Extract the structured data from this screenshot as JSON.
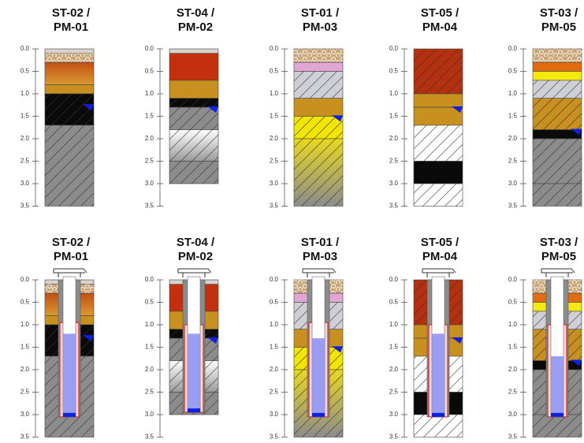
{
  "depth_axis": {
    "lim": [
      0,
      3.5
    ],
    "ticks": [
      {
        "value": 0,
        "label": "0.0"
      },
      {
        "value": 0.5,
        "label": "0.5"
      },
      {
        "value": 1,
        "label": "1.0"
      },
      {
        "value": 1.5,
        "label": "1.5"
      },
      {
        "value": 2,
        "label": "2.0"
      },
      {
        "value": 2.5,
        "label": "2.5"
      },
      {
        "value": 3,
        "label": "3.0"
      },
      {
        "value": 3.5,
        "label": "3.5"
      }
    ]
  },
  "logs": [
    {
      "title": [
        "ST-02 /",
        "PM-01"
      ],
      "water_level": 1.3,
      "layers": [
        {
          "top": 0,
          "bottom": 0.1,
          "color": "#d8d4cc",
          "pattern": "plain"
        },
        {
          "top": 0.1,
          "bottom": 0.3,
          "color": "#c9a577",
          "pattern": "gravel"
        },
        {
          "top": 0.3,
          "bottom": 0.8,
          "color": "#c24f14",
          "color2": "#d99a33",
          "pattern": "plain"
        },
        {
          "top": 0.8,
          "bottom": 1.0,
          "color": "#c8901e",
          "pattern": "plain"
        },
        {
          "top": 1.0,
          "bottom": 1.7,
          "color": "#0a0a0a",
          "pattern": "hatch"
        },
        {
          "top": 1.7,
          "bottom": 3.5,
          "color": "#8c8c8c",
          "pattern": "hatch"
        }
      ],
      "well": {
        "screen_top": 0.95,
        "bottom": 3.05,
        "water": 1.2
      }
    },
    {
      "title": [
        "ST-04 /",
        "PM-02"
      ],
      "water_level": 1.35,
      "layers": [
        {
          "top": 0,
          "bottom": 0.1,
          "color": "#d8d4cc",
          "pattern": "plain"
        },
        {
          "top": 0.1,
          "bottom": 0.7,
          "color": "#c4300e",
          "pattern": "plain"
        },
        {
          "top": 0.7,
          "bottom": 1.1,
          "color": "#c8901e",
          "pattern": "plain"
        },
        {
          "top": 1.1,
          "bottom": 1.3,
          "color": "#0a0a0a",
          "pattern": "hatch"
        },
        {
          "top": 1.3,
          "bottom": 1.8,
          "color": "#8c8c8c",
          "pattern": "hatch"
        },
        {
          "top": 1.8,
          "bottom": 2.5,
          "color": "#ffffff",
          "color2": "#9a9a9a",
          "pattern": "hatch"
        },
        {
          "top": 2.5,
          "bottom": 3.0,
          "color": "#8c8c8c",
          "pattern": "hatch"
        }
      ],
      "well": {
        "screen_top": 1.0,
        "bottom": 2.95,
        "water": 1.2
      }
    },
    {
      "title": [
        "ST-01 /",
        "PM-03"
      ],
      "water_level": 1.55,
      "layers": [
        {
          "top": 0,
          "bottom": 0.3,
          "color": "#c9a577",
          "pattern": "gravel"
        },
        {
          "top": 0.3,
          "bottom": 0.5,
          "color": "#e2a6d4",
          "pattern": "plain"
        },
        {
          "top": 0.5,
          "bottom": 1.1,
          "color": "#cfcfd6",
          "pattern": "hatch"
        },
        {
          "top": 1.1,
          "bottom": 1.5,
          "color": "#c8901e",
          "pattern": "plain"
        },
        {
          "top": 1.5,
          "bottom": 2.0,
          "color": "#f2e600",
          "pattern": "hatch"
        },
        {
          "top": 2.0,
          "bottom": 3.5,
          "color": "#e8d820",
          "color2": "#8c8c8c",
          "pattern": "hatch"
        }
      ],
      "well": {
        "screen_top": 0.95,
        "bottom": 3.05,
        "water": 1.3
      }
    },
    {
      "title": [
        "ST-05 /",
        "PM-04"
      ],
      "water_level": 1.35,
      "layers": [
        {
          "top": 0,
          "bottom": 1.0,
          "color": "#b5300e",
          "pattern": "hatch"
        },
        {
          "top": 1.0,
          "bottom": 1.3,
          "color": "#c8901e",
          "pattern": "plain"
        },
        {
          "top": 1.3,
          "bottom": 1.7,
          "color": "#c8901e",
          "pattern": "plain"
        },
        {
          "top": 1.7,
          "bottom": 2.5,
          "color": "#ffffff",
          "pattern": "hatch"
        },
        {
          "top": 2.5,
          "bottom": 3.0,
          "color": "#0a0a0a",
          "pattern": "plain"
        },
        {
          "top": 3.0,
          "bottom": 3.5,
          "color": "#ffffff",
          "pattern": "hatch"
        }
      ],
      "well": {
        "screen_top": 1.0,
        "bottom": 3.05,
        "water": 1.2
      }
    },
    {
      "title": [
        "ST-03 /",
        "PM-05"
      ],
      "water_level": 1.85,
      "layers": [
        {
          "top": 0,
          "bottom": 0.3,
          "color": "#c9a577",
          "pattern": "gravel"
        },
        {
          "top": 0.3,
          "bottom": 0.5,
          "color": "#e36c10",
          "pattern": "plain"
        },
        {
          "top": 0.5,
          "bottom": 0.7,
          "color": "#f5ea10",
          "pattern": "plain"
        },
        {
          "top": 0.7,
          "bottom": 1.1,
          "color": "#cfcfd6",
          "pattern": "hatch"
        },
        {
          "top": 1.1,
          "bottom": 1.8,
          "color": "#c8901e",
          "pattern": "hatch"
        },
        {
          "top": 1.8,
          "bottom": 2.0,
          "color": "#0a0a0a",
          "pattern": "plain"
        },
        {
          "top": 2.0,
          "bottom": 3.0,
          "color": "#8c8c8c",
          "pattern": "hatch"
        },
        {
          "top": 3.0,
          "bottom": 3.5,
          "color": "#8c8c8c",
          "pattern": "hatch"
        }
      ],
      "well": {
        "screen_top": 1.0,
        "bottom": 3.05,
        "water": 1.7
      }
    }
  ]
}
